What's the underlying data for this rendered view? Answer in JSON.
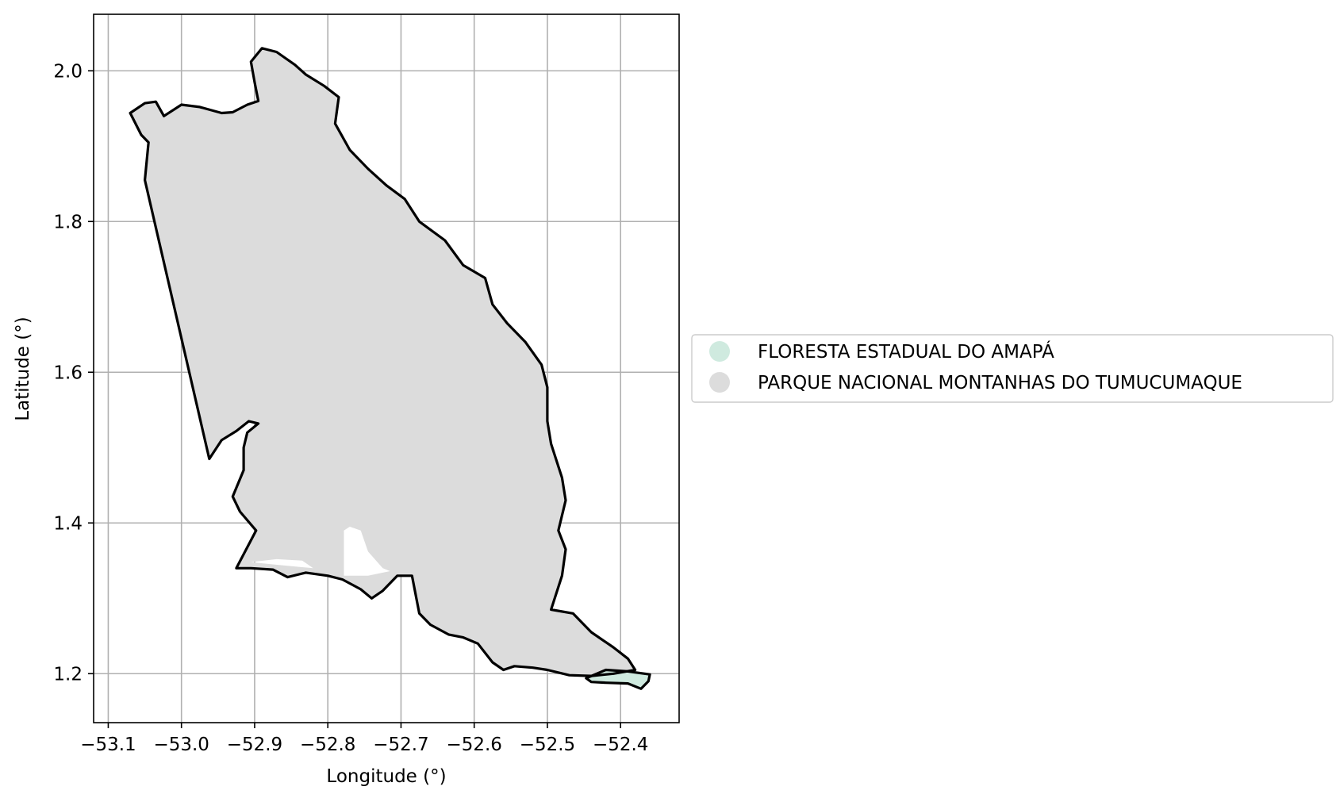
{
  "chart_data": {
    "type": "map",
    "xlabel": "Longitude (°)",
    "ylabel": "Latitude (°)",
    "xlim": [
      -53.12,
      -52.32
    ],
    "ylim": [
      1.135,
      2.075
    ],
    "xticks": [
      -53.1,
      -53.0,
      -52.9,
      -52.8,
      -52.7,
      -52.6,
      -52.5,
      -52.4
    ],
    "xtick_labels": [
      "−53.1",
      "−53.0",
      "−52.9",
      "−52.8",
      "−52.7",
      "−52.6",
      "−52.5",
      "−52.4"
    ],
    "yticks": [
      1.2,
      1.4,
      1.6,
      1.8,
      2.0
    ],
    "ytick_labels": [
      "1.2",
      "1.4",
      "1.6",
      "1.8",
      "2.0"
    ],
    "grid": true,
    "legend_position": "right",
    "legend": [
      {
        "label": "FLORESTA ESTADUAL DO AMAPÁ",
        "color": "#cfeadf"
      },
      {
        "label": "PARQUE NACIONAL MONTANHAS DO TUMUCUMAQUE",
        "color": "#dcdcdc"
      }
    ],
    "boundary_color": "#000000",
    "regions": [
      {
        "name": "PARQUE NACIONAL MONTANHAS DO TUMUCUMAQUE",
        "color": "#dcdcdc",
        "polygon": [
          [
            -53.07,
            1.944
          ],
          [
            -53.05,
            1.957
          ],
          [
            -53.035,
            1.959
          ],
          [
            -53.024,
            1.94
          ],
          [
            -53.0,
            1.955
          ],
          [
            -52.975,
            1.952
          ],
          [
            -52.945,
            1.944
          ],
          [
            -52.93,
            1.945
          ],
          [
            -52.91,
            1.955
          ],
          [
            -52.895,
            1.96
          ],
          [
            -52.9,
            1.985
          ],
          [
            -52.905,
            2.012
          ],
          [
            -52.89,
            2.03
          ],
          [
            -52.87,
            2.025
          ],
          [
            -52.845,
            2.008
          ],
          [
            -52.83,
            1.995
          ],
          [
            -52.805,
            1.98
          ],
          [
            -52.785,
            1.965
          ],
          [
            -52.79,
            1.93
          ],
          [
            -52.77,
            1.895
          ],
          [
            -52.745,
            1.87
          ],
          [
            -52.72,
            1.848
          ],
          [
            -52.695,
            1.83
          ],
          [
            -52.675,
            1.8
          ],
          [
            -52.64,
            1.775
          ],
          [
            -52.615,
            1.742
          ],
          [
            -52.585,
            1.725
          ],
          [
            -52.575,
            1.69
          ],
          [
            -52.555,
            1.665
          ],
          [
            -52.53,
            1.64
          ],
          [
            -52.508,
            1.61
          ],
          [
            -52.5,
            1.58
          ],
          [
            -52.5,
            1.535
          ],
          [
            -52.495,
            1.505
          ],
          [
            -52.48,
            1.46
          ],
          [
            -52.475,
            1.43
          ],
          [
            -52.485,
            1.39
          ],
          [
            -52.475,
            1.365
          ],
          [
            -52.48,
            1.33
          ],
          [
            -52.49,
            1.3
          ],
          [
            -52.495,
            1.285
          ],
          [
            -52.465,
            1.28
          ],
          [
            -52.44,
            1.255
          ],
          [
            -52.41,
            1.235
          ],
          [
            -52.39,
            1.22
          ],
          [
            -52.38,
            1.205
          ],
          [
            -52.41,
            1.2
          ],
          [
            -52.44,
            1.197
          ],
          [
            -52.47,
            1.198
          ],
          [
            -52.5,
            1.205
          ],
          [
            -52.52,
            1.208
          ],
          [
            -52.545,
            1.21
          ],
          [
            -52.56,
            1.205
          ],
          [
            -52.575,
            1.215
          ],
          [
            -52.595,
            1.24
          ],
          [
            -52.615,
            1.248
          ],
          [
            -52.635,
            1.252
          ],
          [
            -52.66,
            1.265
          ],
          [
            -52.675,
            1.28
          ],
          [
            -52.685,
            1.33
          ],
          [
            -52.705,
            1.33
          ],
          [
            -52.725,
            1.31
          ],
          [
            -52.74,
            1.3
          ],
          [
            -52.755,
            1.312
          ],
          [
            -52.78,
            1.325
          ],
          [
            -52.8,
            1.33
          ],
          [
            -52.83,
            1.334
          ],
          [
            -52.855,
            1.328
          ],
          [
            -52.875,
            1.338
          ],
          [
            -52.905,
            1.34
          ],
          [
            -52.925,
            1.34
          ],
          [
            -52.898,
            1.39
          ],
          [
            -52.92,
            1.415
          ],
          [
            -52.93,
            1.435
          ],
          [
            -52.915,
            1.47
          ],
          [
            -52.915,
            1.5
          ],
          [
            -52.91,
            1.52
          ],
          [
            -52.895,
            1.532
          ],
          [
            -52.908,
            1.535
          ],
          [
            -52.925,
            1.522
          ],
          [
            -52.945,
            1.51
          ],
          [
            -52.962,
            1.485
          ],
          [
            -53.05,
            1.855
          ],
          [
            -53.045,
            1.905
          ],
          [
            -53.055,
            1.915
          ],
          [
            -53.07,
            1.944
          ]
        ],
        "holes": [
          [
            [
              -52.905,
              1.348
            ],
            [
              -52.87,
              1.352
            ],
            [
              -52.835,
              1.35
            ],
            [
              -52.82,
              1.34
            ],
            [
              -52.875,
              1.345
            ]
          ],
          [
            [
              -52.778,
              1.33
            ],
            [
              -52.778,
              1.39
            ],
            [
              -52.77,
              1.395
            ],
            [
              -52.755,
              1.39
            ],
            [
              -52.745,
              1.362
            ],
            [
              -52.725,
              1.34
            ],
            [
              -52.715,
              1.336
            ],
            [
              -52.745,
              1.33
            ]
          ]
        ]
      },
      {
        "name": "FLORESTA ESTADUAL DO AMAPÁ",
        "color": "#cfeadf",
        "polygon": [
          [
            -52.447,
            1.194
          ],
          [
            -52.42,
            1.205
          ],
          [
            -52.39,
            1.203
          ],
          [
            -52.36,
            1.199
          ],
          [
            -52.362,
            1.19
          ],
          [
            -52.372,
            1.18
          ],
          [
            -52.39,
            1.187
          ],
          [
            -52.42,
            1.188
          ],
          [
            -52.44,
            1.189
          ]
        ]
      }
    ]
  }
}
